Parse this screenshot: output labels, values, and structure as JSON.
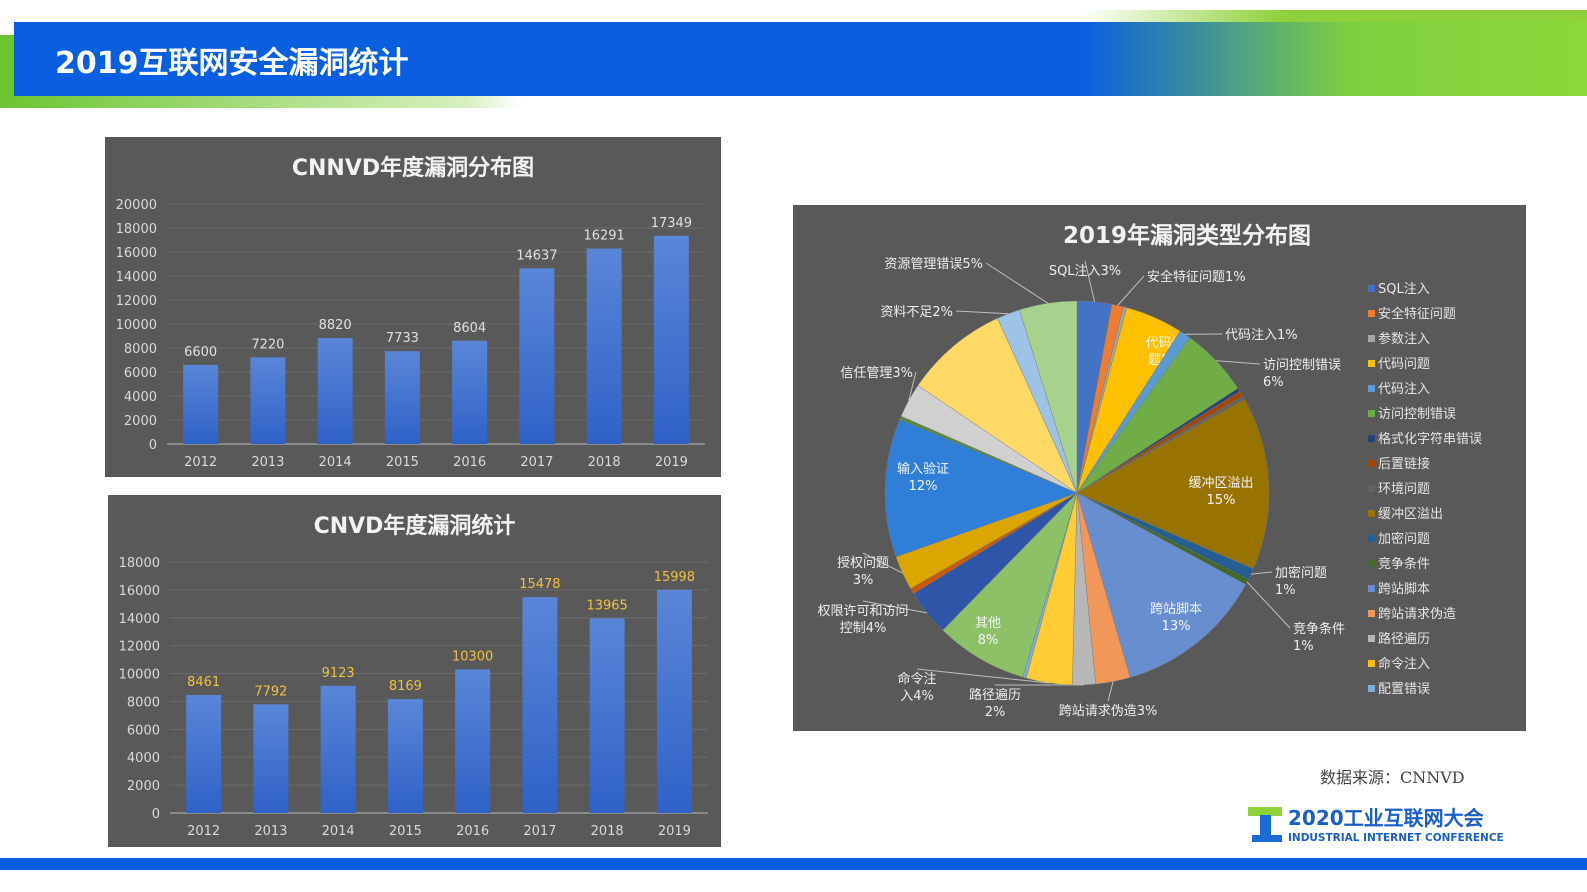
{
  "title": "2019互联网安全漏洞统计",
  "source": "数据来源：CNNVD",
  "logo": {
    "text_cn": "2020工业互联网大会",
    "text_en": "INDUSTRIAL INTERNET CONFERENCE"
  },
  "chart_data": [
    {
      "type": "bar",
      "title": "CNNVD年度漏洞分布图",
      "categories": [
        "2012",
        "2013",
        "2014",
        "2015",
        "2016",
        "2017",
        "2018",
        "2019"
      ],
      "values": [
        6600,
        7220,
        8820,
        7733,
        8604,
        14637,
        16291,
        17349
      ],
      "ylim": [
        0,
        20000
      ],
      "yticks": [
        0,
        2000,
        4000,
        6000,
        8000,
        10000,
        12000,
        14000,
        16000,
        18000,
        20000
      ],
      "grid": true,
      "bar_color": "#4472c4",
      "label_color": "#e0e0e0"
    },
    {
      "type": "bar",
      "title": "CNVD年度漏洞统计",
      "categories": [
        "2012",
        "2013",
        "2014",
        "2015",
        "2016",
        "2017",
        "2018",
        "2019"
      ],
      "values": [
        8461,
        7792,
        9123,
        8169,
        10300,
        15478,
        13965,
        15998
      ],
      "ylim": [
        0,
        18000
      ],
      "yticks": [
        0,
        2000,
        4000,
        6000,
        8000,
        10000,
        12000,
        14000,
        16000,
        18000
      ],
      "grid": true,
      "bar_color": "#4472c4",
      "label_color": "#f0c040"
    },
    {
      "type": "pie",
      "title": "2019年漏洞类型分布图",
      "legend_position": "right",
      "slices": [
        {
          "name": "SQL注入",
          "value": 3,
          "color": "#4472c4",
          "label": "SQL注入3%"
        },
        {
          "name": "安全特征问题",
          "value": 1,
          "color": "#ed7d31",
          "label": "安全特征问题1%"
        },
        {
          "name": "参数注入",
          "value": 0.3,
          "color": "#a5a5a5",
          "label": ""
        },
        {
          "name": "代码问题",
          "value": 5,
          "color": "#ffc000",
          "label": "代码问题5%"
        },
        {
          "name": "代码注入",
          "value": 1,
          "color": "#5b9bd5",
          "label": "代码注入1%"
        },
        {
          "name": "访问控制错误",
          "value": 6,
          "color": "#70ad47",
          "label": "访问控制错误6%"
        },
        {
          "name": "格式化字符串错误",
          "value": 0.3,
          "color": "#264478",
          "label": ""
        },
        {
          "name": "后置链接",
          "value": 0.5,
          "color": "#9e480e",
          "label": ""
        },
        {
          "name": "环境问题",
          "value": 0.3,
          "color": "#636363",
          "label": ""
        },
        {
          "name": "缓冲区溢出",
          "value": 15,
          "color": "#997300",
          "label": "缓冲区溢出15%"
        },
        {
          "name": "加密问题",
          "value": 1,
          "color": "#255e91",
          "label": "加密问题1%"
        },
        {
          "name": "竞争条件",
          "value": 0.5,
          "color": "#43682b",
          "label": "竞争条件1%"
        },
        {
          "name": "跨站脚本",
          "value": 13,
          "color": "#698ed0",
          "label": "跨站脚本13%"
        },
        {
          "name": "跨站请求伪造",
          "value": 3,
          "color": "#f1975a",
          "label": "跨站请求伪造3%"
        },
        {
          "name": "路径遍历",
          "value": 2,
          "color": "#b7b7b7",
          "label": "路径遍历2%"
        },
        {
          "name": "命令注入",
          "value": 4,
          "color": "#ffcd33",
          "label": "命令注入4%"
        },
        {
          "name": "配置错误",
          "value": 0.3,
          "color": "#7cafdd",
          "label": ""
        },
        {
          "name": "其他",
          "value": 8,
          "color": "#8cc168",
          "label": "其他8%"
        },
        {
          "name": "权限许可和访问控制",
          "value": 4,
          "color": "#2e55a8",
          "label": "权限许可和访问控制4%"
        },
        {
          "name": "",
          "value": 0.5,
          "color": "#c55a11",
          "label": ""
        },
        {
          "name": "授权问题",
          "value": 3,
          "color": "#dca600",
          "label": "授权问题3%"
        },
        {
          "name": "输入验证",
          "value": 12,
          "color": "#2f7ed8",
          "label": "输入验证12%"
        },
        {
          "name": "",
          "value": 0.3,
          "color": "#5a8a3a",
          "label": ""
        },
        {
          "name": "信任管理",
          "value": 3,
          "color": "#d0d0d0",
          "label": "信任管理3%"
        },
        {
          "name": "",
          "value": 9,
          "color": "#ffd966",
          "label": ""
        },
        {
          "name": "资料不足",
          "value": 2,
          "color": "#9dc3e6",
          "label": "资料不足2%"
        },
        {
          "name": "资源管理错误",
          "value": 5,
          "color": "#a9d18e",
          "label": "资源管理错误5%"
        }
      ],
      "legend": [
        {
          "name": "SQL注入",
          "color": "#4472c4"
        },
        {
          "name": "安全特征问题",
          "color": "#ed7d31"
        },
        {
          "name": "参数注入",
          "color": "#a5a5a5"
        },
        {
          "name": "代码问题",
          "color": "#ffc000"
        },
        {
          "name": "代码注入",
          "color": "#5b9bd5"
        },
        {
          "name": "访问控制错误",
          "color": "#70ad47"
        },
        {
          "name": "格式化字符串错误",
          "color": "#264478"
        },
        {
          "name": "后置链接",
          "color": "#9e480e"
        },
        {
          "name": "环境问题",
          "color": "#636363"
        },
        {
          "name": "缓冲区溢出",
          "color": "#997300"
        },
        {
          "name": "加密问题",
          "color": "#255e91"
        },
        {
          "name": "竞争条件",
          "color": "#43682b"
        },
        {
          "name": "跨站脚本",
          "color": "#698ed0"
        },
        {
          "name": "跨站请求伪造",
          "color": "#f1975a"
        },
        {
          "name": "路径遍历",
          "color": "#b7b7b7"
        },
        {
          "name": "命令注入",
          "color": "#ffc000"
        },
        {
          "name": "配置错误",
          "color": "#7cafdd"
        }
      ]
    }
  ]
}
